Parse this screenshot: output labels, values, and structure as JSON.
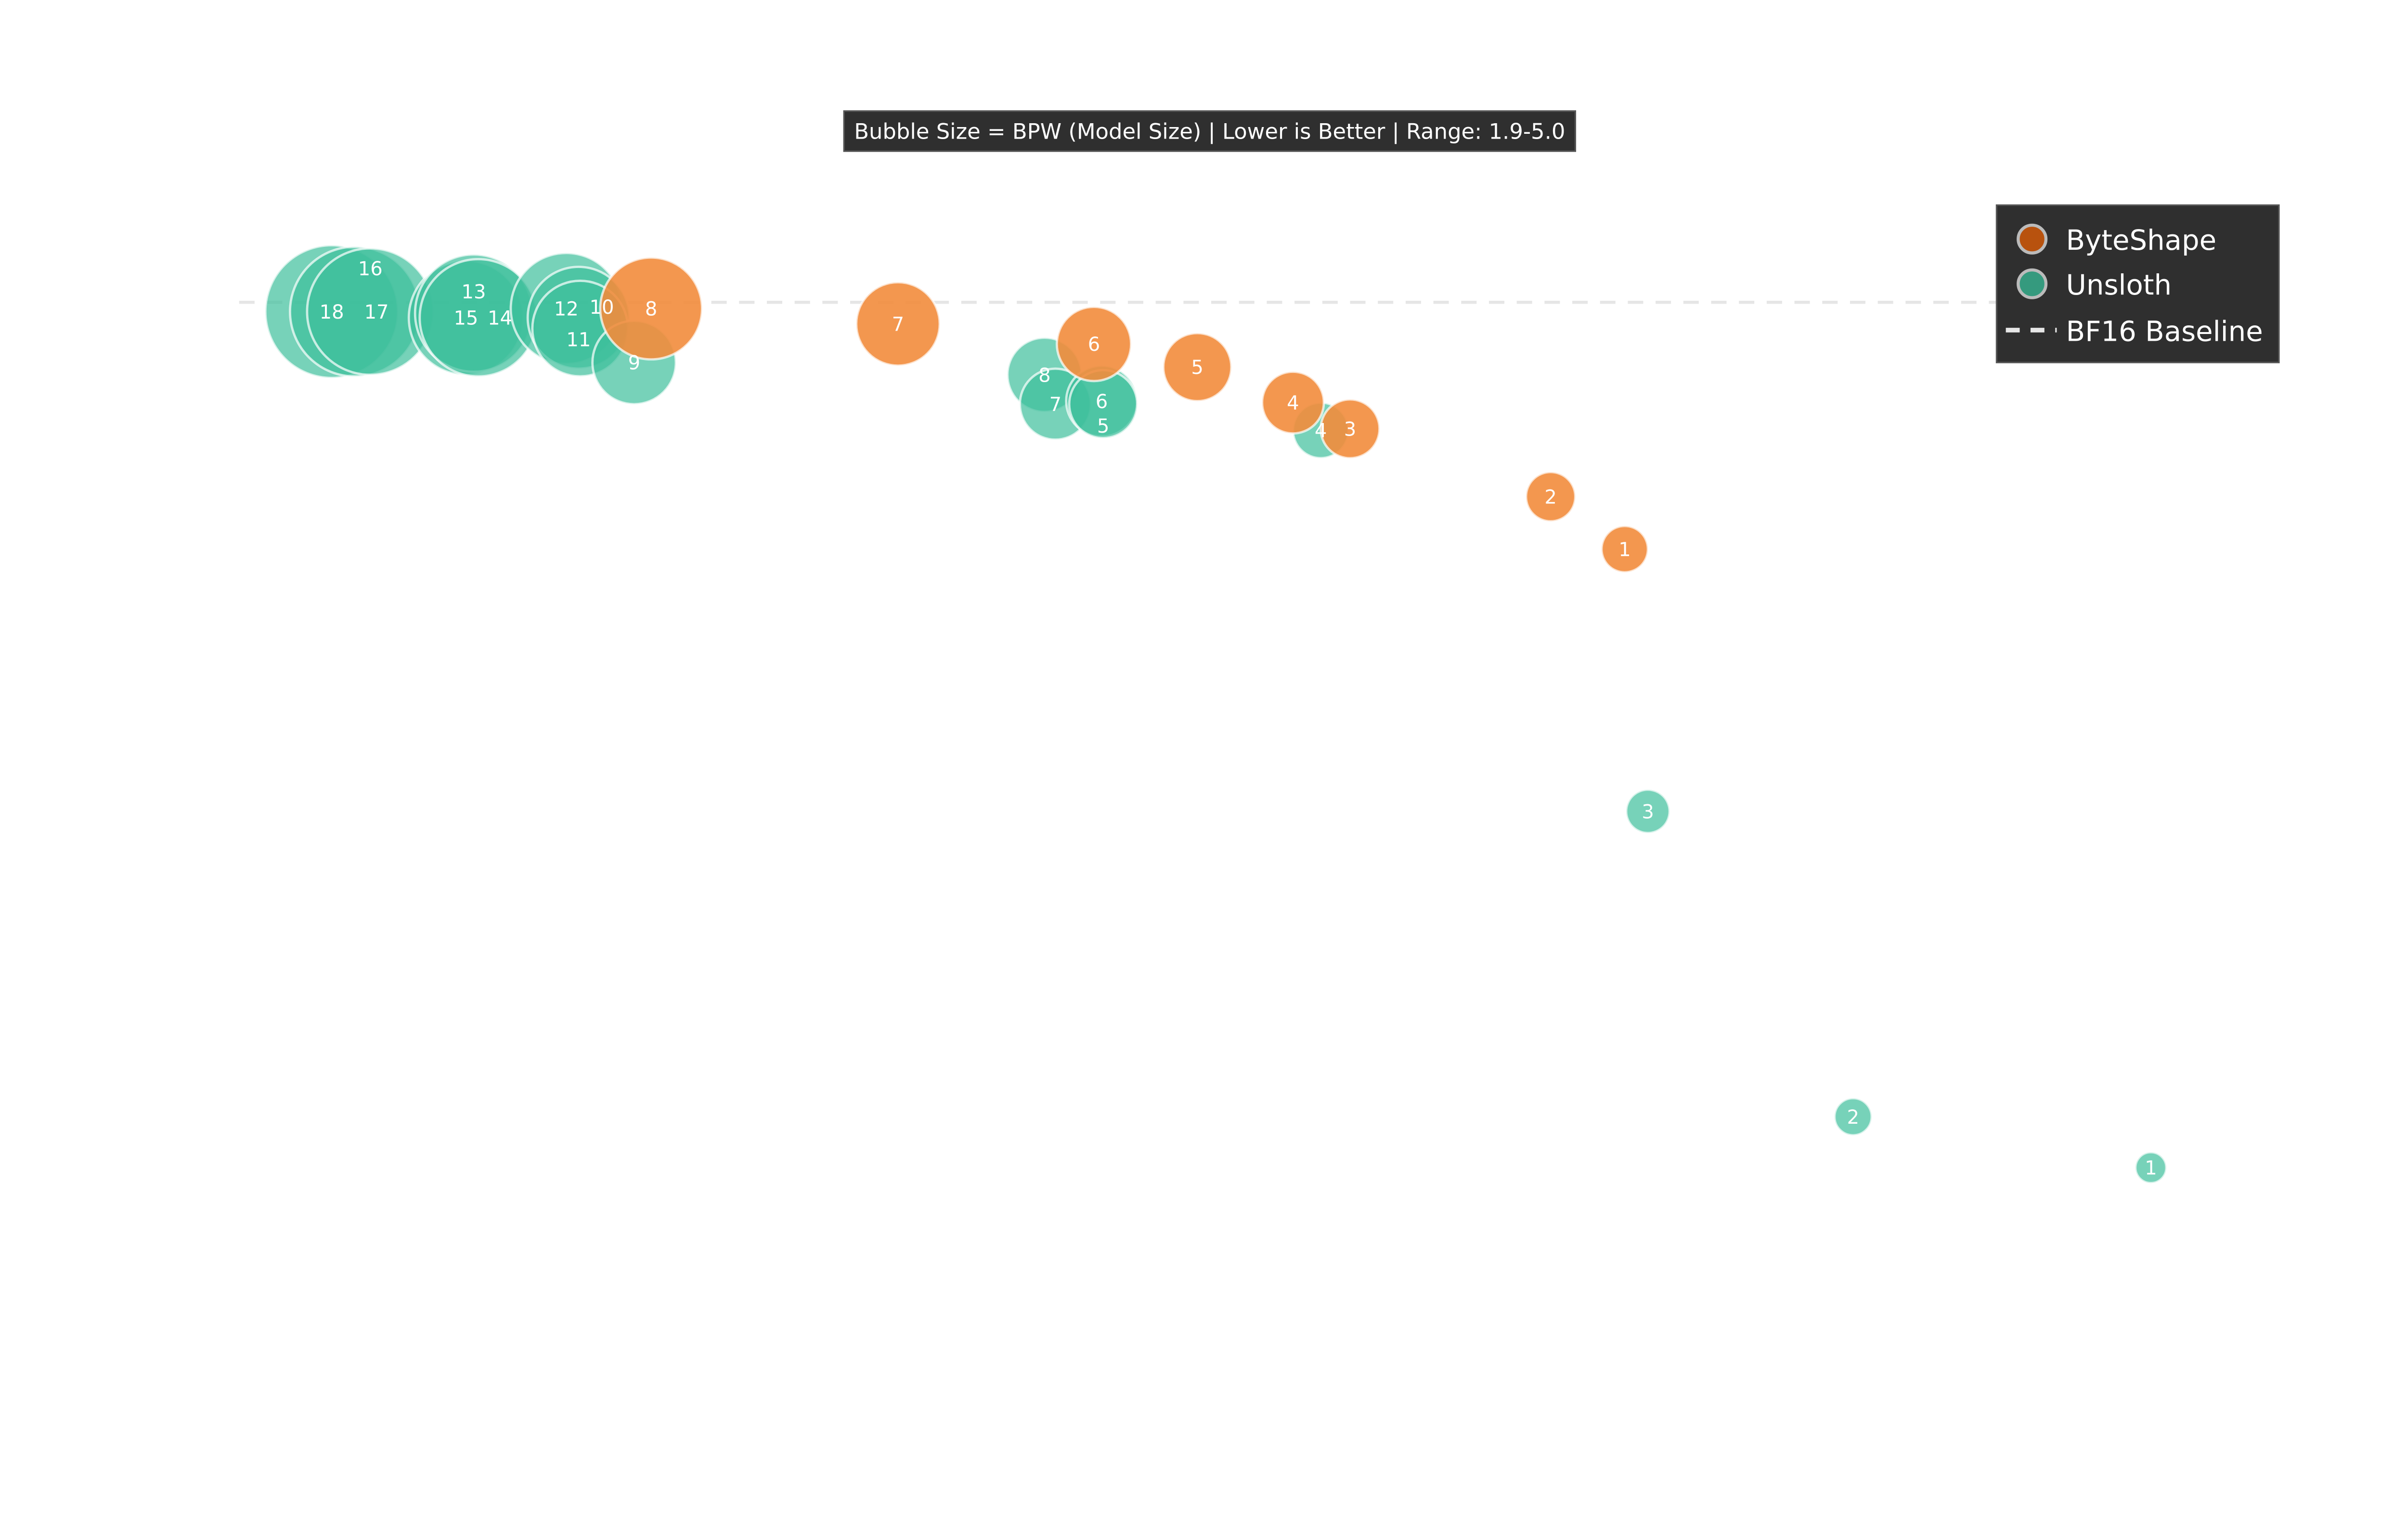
{
  "chart_data": {
    "type": "scatter",
    "subtitle": "Bubble Size = BPW (Model Size) | Lower is Better | Range: 1.9-5.0",
    "xlabel": "",
    "ylabel": "",
    "grid": false,
    "axes_visible": false,
    "xlim": [
      0,
      14.6
    ],
    "ylim": [
      -1.96,
      6.95
    ],
    "y_inverted": true,
    "bubble_size_range": [
      1.9,
      5.0
    ],
    "legend": {
      "placement": "top-right",
      "entries": [
        "ByteShape",
        "Unsloth",
        "BF16 Baseline"
      ]
    },
    "baseline": {
      "name": "BF16 Baseline",
      "y": 0,
      "style": "dashed",
      "color": "#e6e6e6"
    },
    "series": [
      {
        "name": "Unsloth",
        "color": "#3dbf9b",
        "legend_color": "#359a7e",
        "points": [
          {
            "label": "18",
            "x": 1.15,
            "y": 0.06,
            "bpw": 5.0
          },
          {
            "label": "17",
            "x": 1.3,
            "y": 0.06,
            "bpw": 4.91
          },
          {
            "label": "16",
            "x": 1.4,
            "y": 0.06,
            "bpw": 4.81
          },
          {
            "label": "15",
            "x": 2.02,
            "y": 0.1,
            "bpw": 4.44
          },
          {
            "label": "13",
            "x": 2.07,
            "y": 0.07,
            "bpw": 4.53
          },
          {
            "label": "14",
            "x": 2.1,
            "y": 0.1,
            "bpw": 4.53
          },
          {
            "label": "12",
            "x": 2.67,
            "y": 0.04,
            "bpw": 4.34
          },
          {
            "label": "11",
            "x": 2.75,
            "y": 0.1,
            "bpw": 4.06
          },
          {
            "label": "10",
            "x": 2.76,
            "y": 0.17,
            "bpw": 3.87
          },
          {
            "label": "9",
            "x": 3.11,
            "y": 0.39,
            "bpw": 3.5
          },
          {
            "label": "8",
            "x": 5.77,
            "y": 0.47,
            "bpw": 3.22
          },
          {
            "label": "7",
            "x": 5.84,
            "y": 0.66,
            "bpw": 3.12
          },
          {
            "label": "6",
            "x": 6.14,
            "y": 0.64,
            "bpw": 3.12
          },
          {
            "label": "5",
            "x": 6.15,
            "y": 0.66,
            "bpw": 3.03
          },
          {
            "label": "4",
            "x": 7.56,
            "y": 0.83,
            "bpw": 2.65
          },
          {
            "label": "3",
            "x": 9.68,
            "y": 3.3,
            "bpw": 2.28
          },
          {
            "label": "2",
            "x": 11.01,
            "y": 5.28,
            "bpw": 2.09
          },
          {
            "label": "1",
            "x": 12.94,
            "y": 5.61,
            "bpw": 1.9
          }
        ]
      },
      {
        "name": "ByteShape",
        "color": "#f28c3c",
        "legend_color": "#b8520e",
        "points": [
          {
            "label": "8",
            "x": 3.22,
            "y": 0.04,
            "bpw": 4.06
          },
          {
            "label": "7",
            "x": 4.82,
            "y": 0.14,
            "bpw": 3.5
          },
          {
            "label": "6",
            "x": 6.09,
            "y": 0.27,
            "bpw": 3.22
          },
          {
            "label": "5",
            "x": 6.76,
            "y": 0.42,
            "bpw": 3.03
          },
          {
            "label": "4",
            "x": 7.38,
            "y": 0.65,
            "bpw": 2.84
          },
          {
            "label": "3",
            "x": 7.75,
            "y": 0.82,
            "bpw": 2.75
          },
          {
            "label": "2",
            "x": 9.05,
            "y": 1.26,
            "bpw": 2.46
          },
          {
            "label": "1",
            "x": 9.53,
            "y": 1.6,
            "bpw": 2.37
          }
        ]
      }
    ]
  }
}
